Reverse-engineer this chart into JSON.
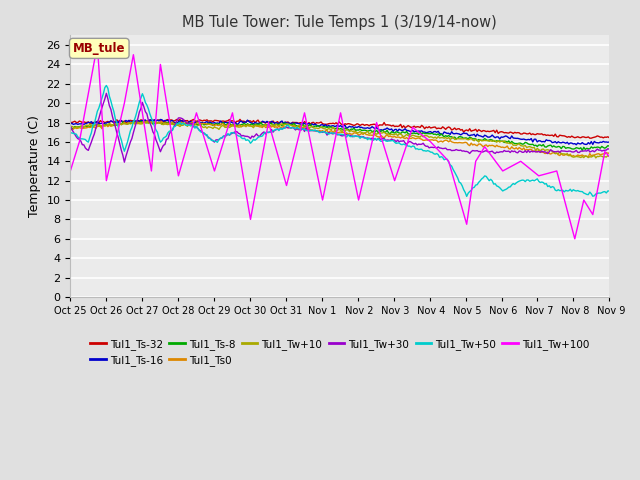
{
  "title": "MB Tule Tower: Tule Temps 1 (3/19/14-now)",
  "ylabel": "Temperature (C)",
  "ylim": [
    0,
    27
  ],
  "yticks": [
    0,
    2,
    4,
    6,
    8,
    10,
    12,
    14,
    16,
    18,
    20,
    22,
    24,
    26
  ],
  "background_color": "#e0e0e0",
  "plot_bg_color": "#ebebeb",
  "legend_label": "MB_tule",
  "series_order": [
    "Tul1_Ts-32",
    "Tul1_Ts-16",
    "Tul1_Ts-8",
    "Tul1_Ts0",
    "Tul1_Tw+10",
    "Tul1_Tw+30",
    "Tul1_Tw+50",
    "Tul1_Tw+100"
  ],
  "colors": {
    "Tul1_Ts-32": "#cc0000",
    "Tul1_Ts-16": "#0000cc",
    "Tul1_Ts-8": "#00aa00",
    "Tul1_Ts0": "#dd8800",
    "Tul1_Tw+10": "#aaaa00",
    "Tul1_Tw+30": "#9900cc",
    "Tul1_Tw+50": "#00cccc",
    "Tul1_Tw+100": "#ff00ff"
  },
  "xtick_labels": [
    "Oct 25",
    "Oct 26",
    "Oct 27",
    "Oct 28",
    "Oct 29",
    "Oct 30",
    "Oct 31",
    "Nov 1",
    " Nov 2",
    " Nov 3",
    " Nov 4",
    " Nov 5",
    " Nov 6",
    " Nov 7",
    " Nov 8",
    " Nov 9"
  ],
  "n_xticks": 16,
  "n_points": 360
}
